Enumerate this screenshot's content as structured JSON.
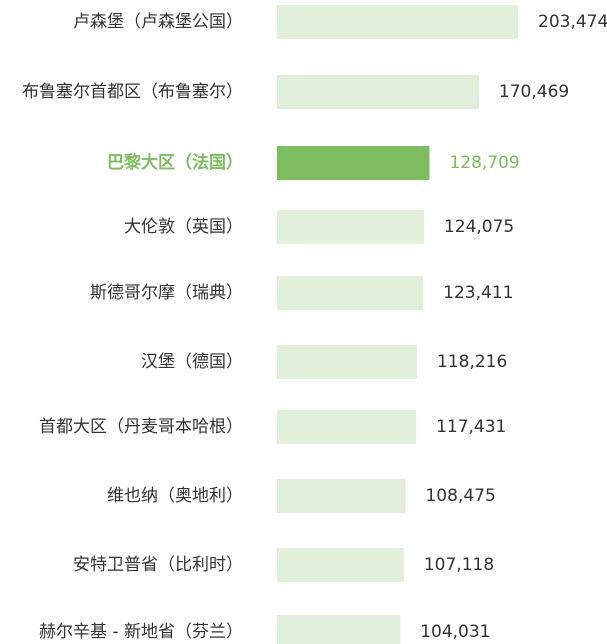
{
  "chart_data": {
    "type": "bar",
    "orientation": "horizontal",
    "categories": [
      "卢森堡（卢森堡公国）",
      "布鲁塞尔首都区（布鲁塞尔）",
      "巴黎大区（法国）",
      "大伦敦（英国）",
      "斯德哥尔摩（瑞典）",
      "汉堡（德国）",
      "首都大区（丹麦哥本哈根）",
      "维也纳（奥地利）",
      "安特卫普省（比利时）",
      "赫尔辛基 - 新地省（芬兰）"
    ],
    "values": [
      203474,
      170469,
      128709,
      124075,
      123411,
      118216,
      117431,
      108475,
      107118,
      104031
    ],
    "value_labels": [
      "203,474",
      "170,469",
      "128,709",
      "124,075",
      "123,411",
      "118,216",
      "117,431",
      "108,475",
      "107,118",
      "104,031"
    ],
    "color": "#e2efda",
    "highlight_color": "#7dbd5f",
    "highlight_index": 2
  }
}
